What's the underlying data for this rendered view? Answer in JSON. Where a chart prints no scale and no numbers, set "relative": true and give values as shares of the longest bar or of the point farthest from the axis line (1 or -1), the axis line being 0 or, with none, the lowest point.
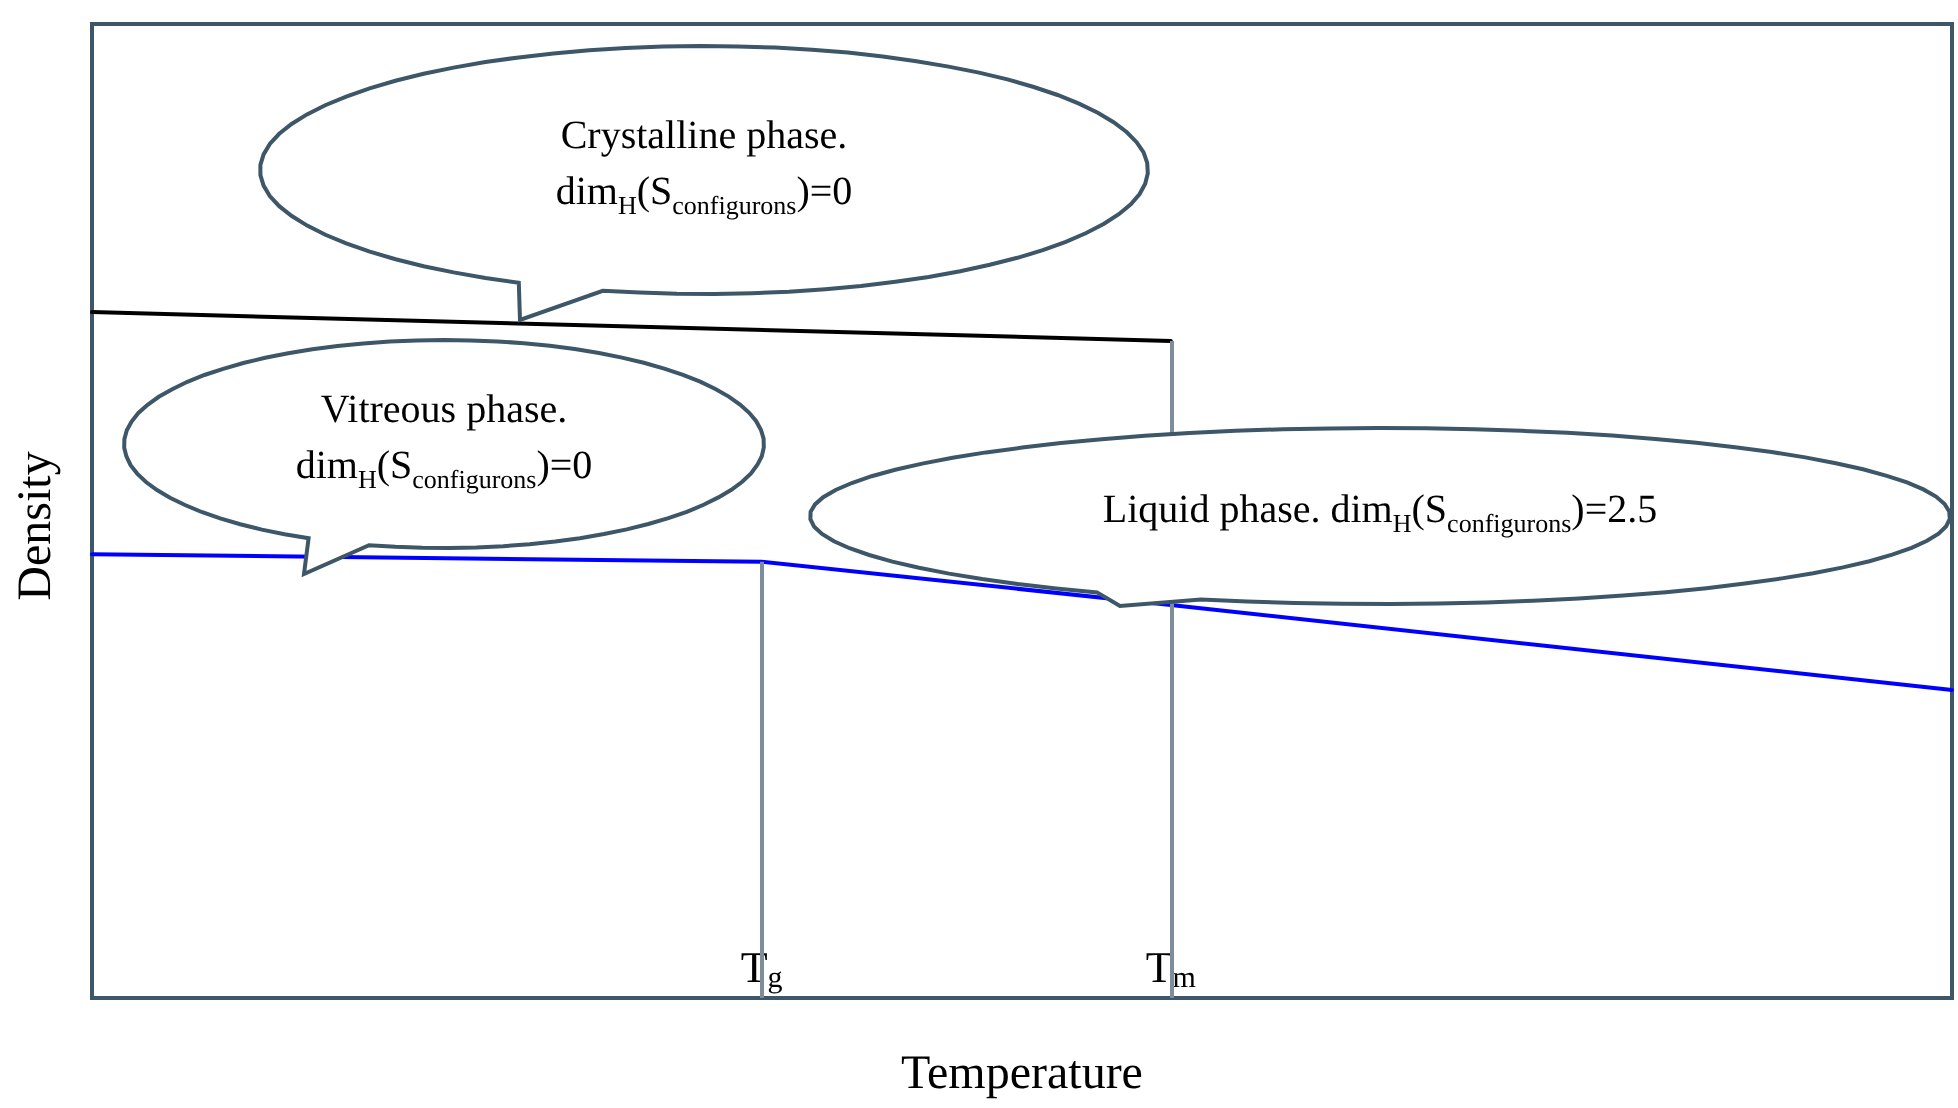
{
  "chart_data": {
    "type": "line",
    "relative": true,
    "xlabel": "Temperature",
    "ylabel": "Density",
    "categories": [
      null,
      null,
      null,
      null,
      null,
      null,
      null,
      null,
      null,
      null,
      null,
      null,
      null,
      null,
      null,
      null,
      null,
      null,
      "T$_{g}$",
      null,
      null,
      null,
      null,
      null,
      null,
      null,
      null,
      null,
      null,
      "T$_{m}$",
      null,
      null,
      null,
      null,
      null,
      null,
      null,
      null,
      null,
      null,
      null,
      null,
      null,
      null,
      null,
      null,
      null,
      null,
      null,
      null,
      null
    ],
    "tick_labels": "x",
    "marker": "none",
    "line_style": "solid",
    "series": [
      {
        "color": "#000000",
        "values": [
          1,
          null,
          null,
          null,
          null,
          null,
          null,
          null,
          null,
          null,
          null,
          null,
          null,
          null,
          null,
          null,
          null,
          null,
          null,
          null,
          null,
          null,
          null,
          null,
          null,
          null,
          null,
          null,
          null,
          0.958,
          null,
          null,
          null,
          null,
          null,
          null,
          null,
          null,
          null,
          null,
          null,
          null,
          null,
          null,
          null,
          null,
          null,
          null,
          null,
          null,
          null
        ]
      },
      {
        "color": "#0000ff",
        "values": [
          0.647,
          null,
          null,
          null,
          null,
          null,
          null,
          null,
          null,
          null,
          null,
          null,
          null,
          null,
          null,
          null,
          null,
          null,
          0.636,
          null,
          null,
          null,
          null,
          null,
          null,
          null,
          null,
          null,
          null,
          0.573,
          null,
          null,
          null,
          null,
          null,
          null,
          null,
          null,
          null,
          null,
          null,
          null,
          null,
          null,
          null,
          null,
          null,
          null,
          null,
          null,
          0.449
        ]
      }
    ],
    "ref_lines": [
      {
        "axis": "x",
        "value": "T$_{g}$",
        "color": "#7f8c99"
      },
      {
        "axis": "x",
        "value": "T$_{m}$",
        "color": "#7f8c99"
      }
    ],
    "annotations": [
      "Crystalline phase. dim$_{H}$(S$_{configurons}$)=0",
      "Vitreous phase. dim$_{H}$(S$_{configurons}$)=0",
      "Liquid phase. dim$_{H}$(S$_{configurons}$)=2.5"
    ]
  }
}
